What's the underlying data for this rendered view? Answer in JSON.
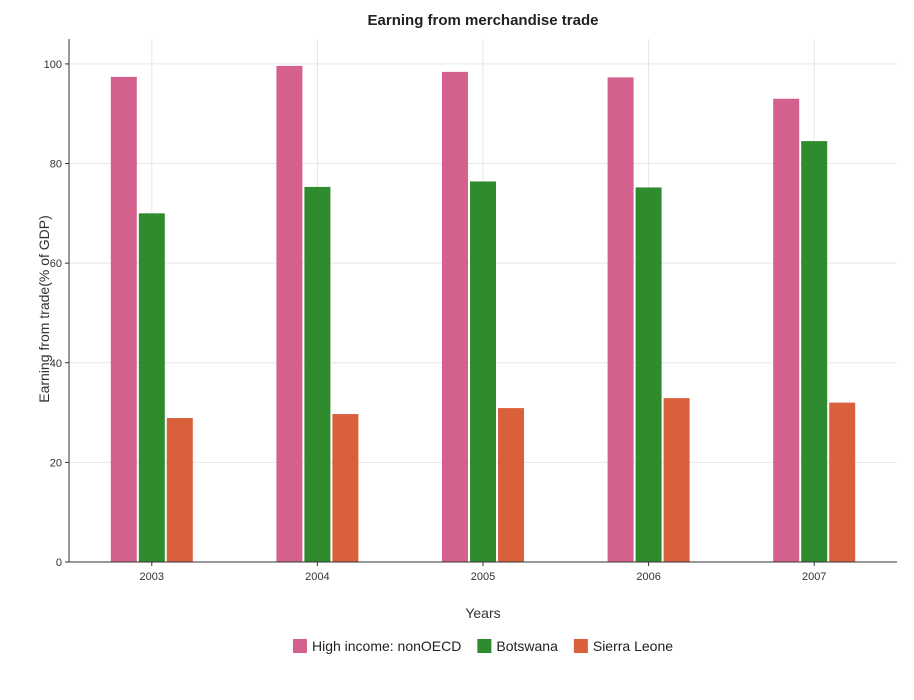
{
  "chart_data": {
    "type": "bar",
    "title": "Earning from merchandise trade",
    "xlabel": "Years",
    "ylabel": "Earning from trade(% of GDP)",
    "categories": [
      "2003",
      "2004",
      "2005",
      "2006",
      "2007"
    ],
    "ylim": [
      0,
      105
    ],
    "yticks": [
      0,
      20,
      40,
      60,
      80,
      100
    ],
    "grid": true,
    "legend_position": "bottom",
    "series": [
      {
        "name": "High income: nonOECD",
        "color": "#d4608e",
        "values": [
          97.4,
          99.6,
          98.4,
          97.3,
          93.0
        ]
      },
      {
        "name": "Botswana",
        "color": "#2e8b2e",
        "values": [
          70.0,
          75.3,
          76.4,
          75.2,
          84.5
        ]
      },
      {
        "name": "Sierra Leone",
        "color": "#d9603b",
        "values": [
          28.9,
          29.7,
          30.9,
          32.9,
          32.0
        ]
      }
    ]
  }
}
